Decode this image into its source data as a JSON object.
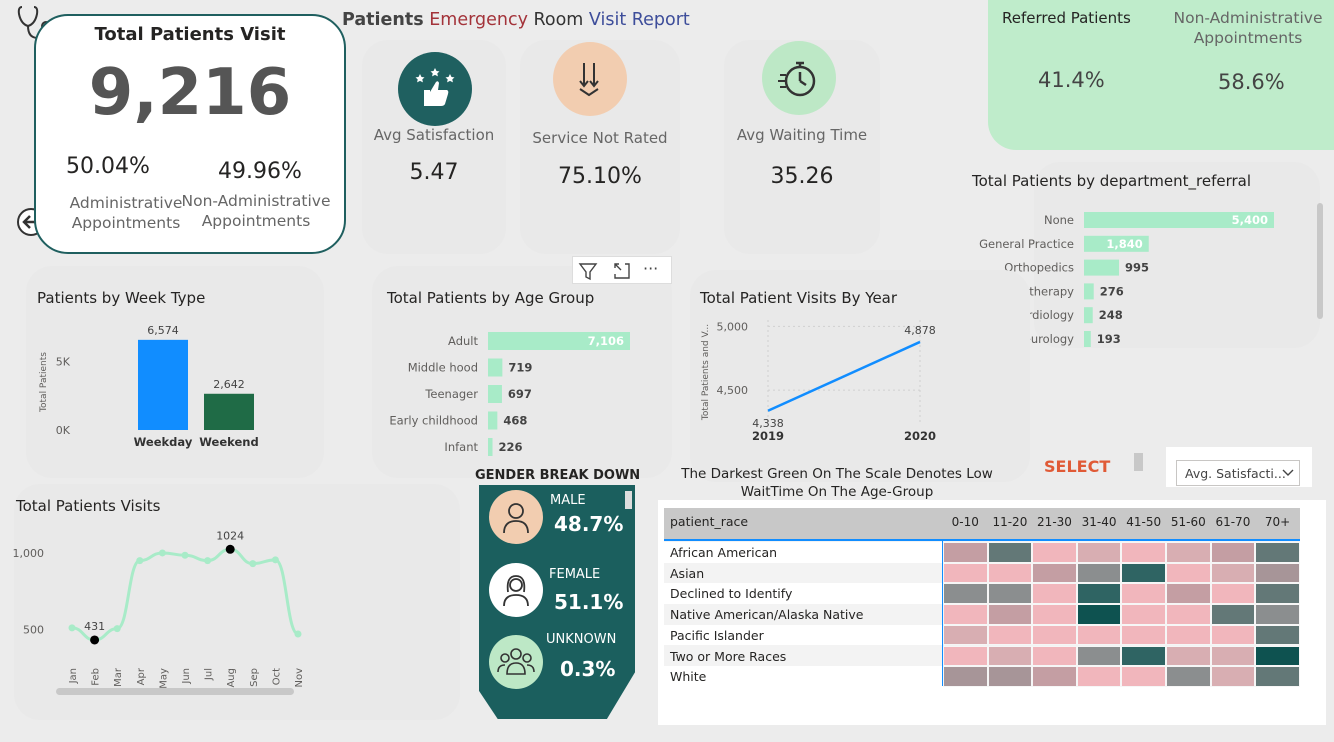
{
  "header": {
    "title_part1": "Patients",
    "title_part2": "Emergency",
    "title_part3": "Room",
    "title_part4": "Visit Report"
  },
  "total_visits": {
    "title": "Total Patients Visit",
    "value": "9,216",
    "admin_pct": "50.04%",
    "admin_label_1": "Administrative",
    "admin_label_2": "Appointments",
    "nonadmin_pct": "49.96%",
    "nonadmin_label_1": "Non-Administrative",
    "nonadmin_label_2": "Appointments"
  },
  "kpis": [
    {
      "label": "Avg Satisfaction",
      "value": "5.47",
      "icon": "thumbs-up-stars-icon",
      "color": "#1f6060"
    },
    {
      "label": "Service Not Rated",
      "value": "75.10%",
      "icon": "down-arrows-icon",
      "color": "#f2cdb0"
    },
    {
      "label": "Avg Waiting Time",
      "value": "35.26",
      "icon": "stopwatch-icon",
      "color": "#bde8c6"
    }
  ],
  "referral": {
    "referred_label": "Referred Patients",
    "referred_value": "41.4%",
    "nonadmin_label_1": "Non-Administrative",
    "nonadmin_label_2": "Appointments",
    "nonadmin_value": "58.6%",
    "bg": "#bfeccb"
  },
  "toolbar": {
    "filter_icon": "filter-icon",
    "focus_icon": "focus-mode-icon",
    "more_label": "···"
  },
  "select_label": "SELECT",
  "dropdown_value": "Avg. Satisfacti...",
  "gender": {
    "title": "GENDER BREAK DOWN",
    "items": [
      {
        "label": "MALE",
        "value": "48.7%",
        "icon": "male-avatar-icon",
        "bg": "#f2cdb0"
      },
      {
        "label": "FEMALE",
        "value": "51.1%",
        "icon": "female-avatar-icon",
        "bg": "#ffffff"
      },
      {
        "label": "UNKNOWN",
        "value": "0.3%",
        "icon": "group-icon",
        "bg": "#bde8c6"
      }
    ]
  },
  "heatmap_caption_1": "The Darkest Green On The Scale Denotes Low",
  "heatmap_caption_2": "WaitTime On The Age-Group",
  "chart_data": [
    {
      "type": "bar",
      "title": "Patients by Week Type",
      "ylabel": "Total Patients",
      "categories": [
        "Weekday",
        "Weekend"
      ],
      "values": [
        6574,
        2642
      ],
      "value_labels": [
        "6,574",
        "2,642"
      ],
      "yticks": [
        "5K",
        "0K"
      ],
      "ylim": [
        0,
        7000
      ],
      "colors": [
        "#118dff",
        "#1f6b46"
      ]
    },
    {
      "type": "bar",
      "orientation": "horizontal",
      "title": "Total Patients by Age Group",
      "categories": [
        "Adult",
        "Middle hood",
        "Teenager",
        "Early childhood",
        "Infant"
      ],
      "values": [
        7106,
        719,
        697,
        468,
        226
      ],
      "value_labels": [
        "7,106",
        "719",
        "697",
        "468",
        "226"
      ],
      "color": "#a8ebc8"
    },
    {
      "type": "line",
      "title": "Total Patient Visits By Year",
      "ylabel": "Total Patients and V...",
      "x": [
        "2019",
        "2020"
      ],
      "values": [
        4338,
        4878
      ],
      "value_labels": [
        "4,338",
        "4,878"
      ],
      "yticks": [
        "5,000",
        "4,500"
      ],
      "ylim": [
        4250,
        5050
      ],
      "color": "#118dff"
    },
    {
      "type": "bar",
      "orientation": "horizontal",
      "title": "Total Patients by department_referral",
      "categories": [
        "None",
        "General Practice",
        "Orthopedics",
        "Physiotherapy",
        "Cardiology",
        "Neurology"
      ],
      "values": [
        5400,
        1840,
        995,
        276,
        248,
        193
      ],
      "value_labels": [
        "5,400",
        "1,840",
        "995",
        "276",
        "248",
        "193"
      ],
      "color": "#a8ebc8"
    },
    {
      "type": "line",
      "title": "Total Patients Visits",
      "x": [
        "Jan",
        "Feb",
        "Mar",
        "Apr",
        "May",
        "Jun",
        "Jul",
        "Aug",
        "Sep",
        "Oct",
        "Nov"
      ],
      "values": [
        510,
        431,
        505,
        950,
        1000,
        985,
        950,
        1024,
        930,
        955,
        470
      ],
      "labeled": [
        {
          "index": 1,
          "label": "431"
        },
        {
          "index": 7,
          "label": "1024"
        }
      ],
      "yticks": [
        "1,000",
        "500"
      ],
      "ylim": [
        300,
        1150
      ],
      "color": "#a8ebc8"
    },
    {
      "type": "heatmap",
      "row_header": "patient_race",
      "columns": [
        "0-10",
        "11-20",
        "21-30",
        "31-40",
        "41-50",
        "51-60",
        "61-70",
        "70+"
      ],
      "rows": [
        "African American",
        "Asian",
        "Declined to Identify",
        "Native American/Alaska Native",
        "Pacific Islander",
        "Two or More Races",
        "White"
      ],
      "levels": [
        [
          3,
          6,
          1,
          2,
          1,
          2,
          3,
          6
        ],
        [
          1,
          1,
          3,
          5,
          7,
          1,
          2,
          4
        ],
        [
          5,
          5,
          1,
          7,
          1,
          3,
          1,
          6
        ],
        [
          1,
          3,
          1,
          8,
          1,
          1,
          6,
          5
        ],
        [
          2,
          1,
          1,
          1,
          1,
          1,
          1,
          6
        ],
        [
          1,
          2,
          1,
          5,
          7,
          2,
          2,
          8
        ],
        [
          4,
          4,
          3,
          1,
          1,
          5,
          2,
          6
        ]
      ]
    }
  ]
}
